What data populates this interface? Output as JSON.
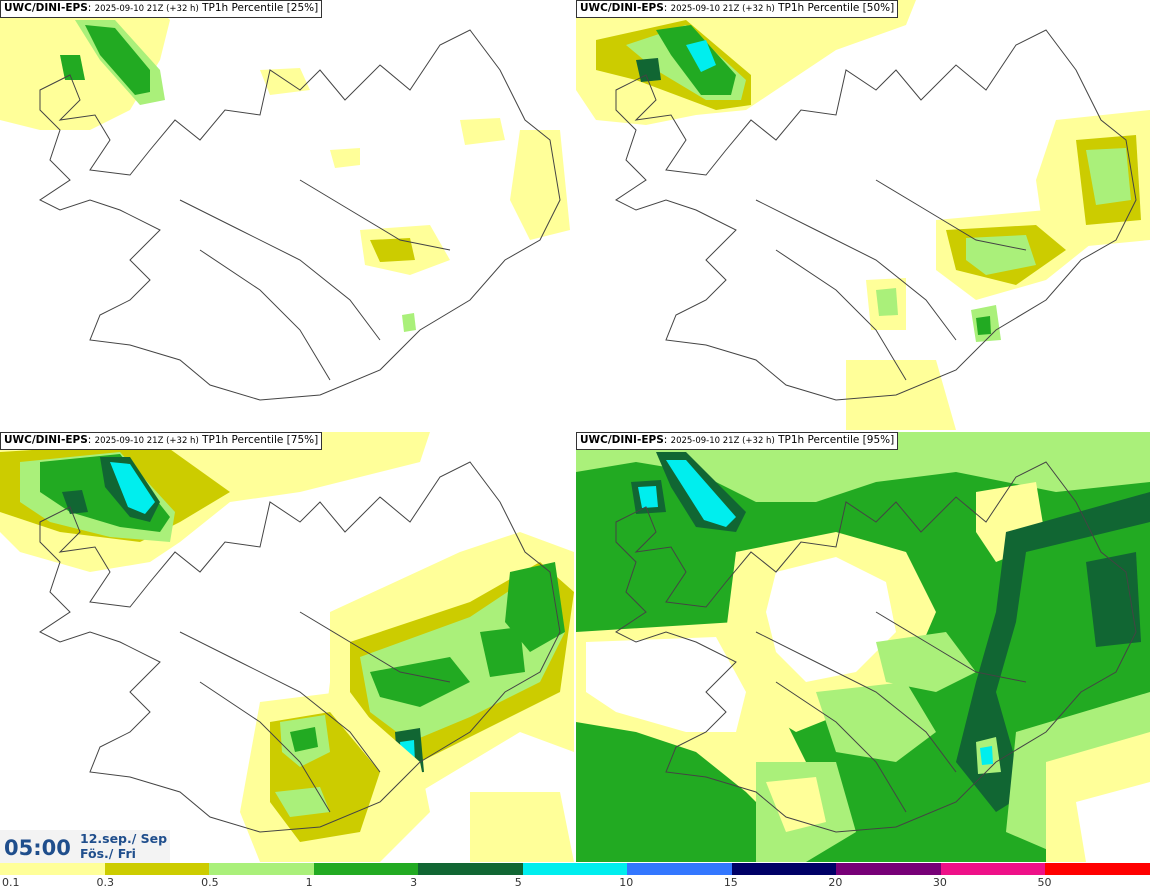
{
  "panels": [
    {
      "model": "UWC/DINI-EPS",
      "run": "2025-09-10 21Z (+32 h)",
      "product": "TP1h Percentile [25%]"
    },
    {
      "model": "UWC/DINI-EPS",
      "run": "2025-09-10 21Z (+32 h)",
      "product": "TP1h Percentile [50%]"
    },
    {
      "model": "UWC/DINI-EPS",
      "run": "2025-09-10 21Z (+32 h)",
      "product": "TP1h Percentile [75%]"
    },
    {
      "model": "UWC/DINI-EPS",
      "run": "2025-09-10 21Z (+32 h)",
      "product": "TP1h Percentile [95%]"
    }
  ],
  "valid_time": {
    "clock": "05:00",
    "date_line1": "12.sep./ Sep",
    "date_line2": "Fös./ Fri"
  },
  "colorbar": {
    "colors": [
      "#ffff99",
      "#cccc00",
      "#aaf07a",
      "#22aa22",
      "#116633",
      "#00eeee",
      "#3377ff",
      "#000066",
      "#770077",
      "#ee1188",
      "#ff0000"
    ],
    "labels": [
      "0.1",
      "0.3",
      "0.5",
      "1",
      "3",
      "5",
      "10",
      "15",
      "20",
      "30",
      "50"
    ]
  }
}
